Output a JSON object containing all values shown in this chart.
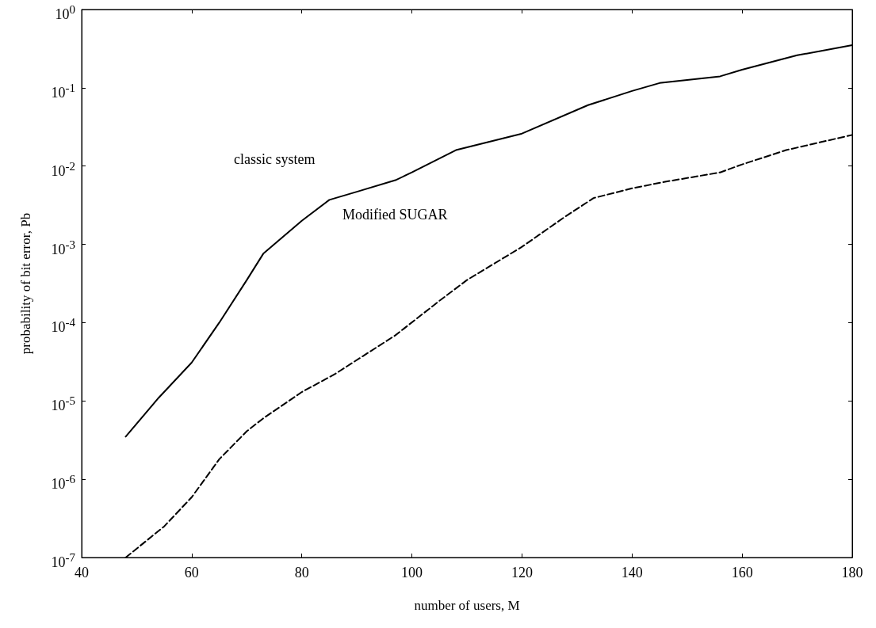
{
  "chart_data": {
    "type": "line",
    "xlabel": "number of users, M",
    "ylabel": "probability of bit error, Pb",
    "xlim": [
      40,
      180
    ],
    "xticks": [
      40,
      60,
      80,
      100,
      120,
      140,
      160,
      180
    ],
    "ylim": [
      1e-07,
      1
    ],
    "log": true,
    "yticks": [
      {
        "value": 1e-07,
        "label": "10$^{-7}$"
      },
      {
        "value": 1e-06,
        "label": "10$^{-6}$"
      },
      {
        "value": 1e-05,
        "label": "10$^{-5}$"
      },
      {
        "value": 0.0001,
        "label": "10$^{-4}$"
      },
      {
        "value": 0.001,
        "label": "10$^{-3}$"
      },
      {
        "value": 0.01,
        "label": "10$^{-2}$"
      },
      {
        "value": 0.1,
        "label": "10$^{-1}$"
      },
      {
        "value": 1,
        "label": "10$^{0}$"
      }
    ],
    "grid": false,
    "marker": "none",
    "annotations": [
      "classic system",
      "Modified SUGAR"
    ],
    "series": [
      {
        "color": "#000000",
        "line_style": "solid",
        "x": [
          48,
          54,
          60,
          65,
          70,
          73,
          80,
          85,
          90,
          97,
          100,
          108,
          120,
          132,
          140,
          145,
          156,
          160,
          170,
          180
        ],
        "values": [
          3.5e-06,
          1.1e-05,
          3.1e-05,
          0.0001,
          0.00035,
          0.00076,
          0.002,
          0.0037,
          0.0047,
          0.0066,
          0.0083,
          0.016,
          0.026,
          0.06,
          0.091,
          0.115,
          0.14,
          0.17,
          0.26,
          0.35
        ]
      },
      {
        "color": "#000000",
        "line_style": "dashed",
        "x": [
          48,
          55,
          60,
          65,
          70,
          73,
          80,
          86,
          97,
          105,
          110,
          120,
          128,
          133,
          140,
          146,
          156,
          160,
          168,
          180
        ],
        "values": [
          1e-07,
          2.5e-07,
          5.9e-07,
          1.8e-06,
          4.1e-06,
          6e-06,
          1.3e-05,
          2.2e-05,
          6.9e-05,
          0.00019,
          0.00035,
          0.00093,
          0.0023,
          0.0039,
          0.0052,
          0.0063,
          0.0083,
          0.0105,
          0.016,
          0.025
        ]
      }
    ]
  }
}
